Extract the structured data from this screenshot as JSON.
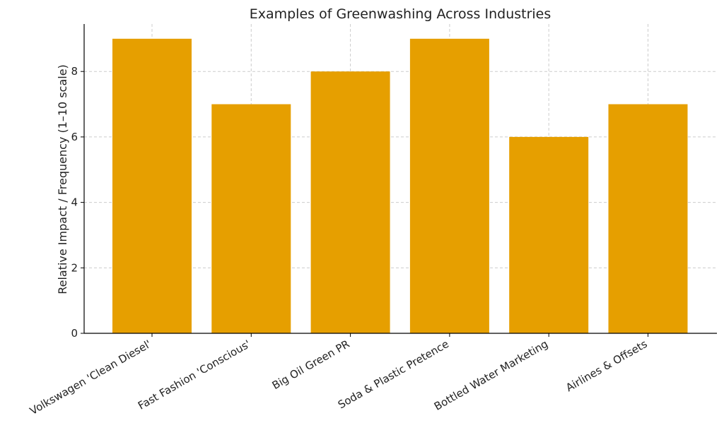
{
  "chart_data": {
    "type": "bar",
    "title": "Examples of Greenwashing Across Industries",
    "xlabel": "",
    "ylabel": "Relative Impact / Frequency (1–10 scale)",
    "categories": [
      "Volkswagen 'Clean Diesel'",
      "Fast Fashion 'Conscious'",
      "Big Oil Green PR",
      "Soda & Plastic Pretence",
      "Bottled Water Marketing",
      "Airlines & Offsets"
    ],
    "values": [
      9,
      7,
      8,
      9,
      6,
      7
    ],
    "ylim": [
      0,
      9.45
    ],
    "yticks": [
      0,
      2,
      4,
      6,
      8
    ],
    "grid": true,
    "bar_color": "#E69F00"
  }
}
